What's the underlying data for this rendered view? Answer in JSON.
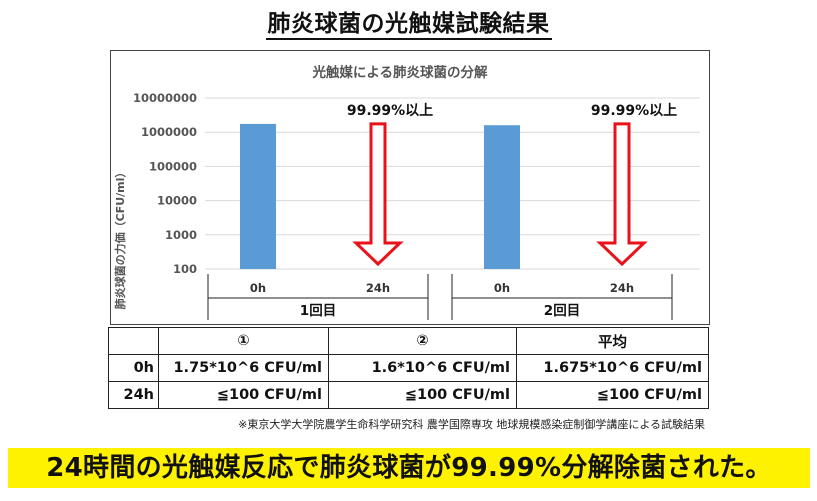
{
  "page_title": "肺炎球菌の光触媒試験結果",
  "chart_data": {
    "type": "bar",
    "title": "光触媒による肺炎球菌の分解",
    "ylabel": "肺炎球菌の力価（CFU/ml）",
    "yscale": "log",
    "ylim": [
      100,
      10000000
    ],
    "y_ticks": [
      "100",
      "1000",
      "10000",
      "100000",
      "1000000",
      "10000000"
    ],
    "groups": [
      {
        "label": "1回目",
        "categories": [
          "0h",
          "24h"
        ],
        "values": [
          1750000,
          null
        ],
        "reduction_label": "99.99%以上"
      },
      {
        "label": "2回目",
        "categories": [
          "0h",
          "24h"
        ],
        "values": [
          1600000,
          null
        ],
        "reduction_label": "99.99%以上"
      }
    ],
    "colors": {
      "bar": "#5b9bd5",
      "arrow": "#e8121b"
    }
  },
  "table": {
    "headers": [
      "",
      "①",
      "②",
      "平均"
    ],
    "rows": [
      {
        "label": "0h",
        "cells": [
          "1.75*10^6 CFU/ml",
          "1.6*10^6 CFU/ml",
          "1.675*10^6 CFU/ml"
        ]
      },
      {
        "label": "24h",
        "cells": [
          "≦100 CFU/ml",
          "≦100 CFU/ml",
          "≦100 CFU/ml"
        ]
      }
    ]
  },
  "footnote": "※東京大学大学院農学生命科学研究科 農学国際専攻 地球規模感染症制御学講座による試験結果",
  "conclusion": "24時間の光触媒反応で肺炎球菌が99.99%分解除菌された。"
}
